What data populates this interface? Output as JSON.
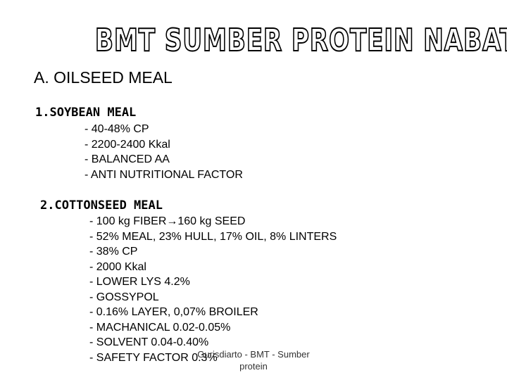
{
  "title": "BMT SUMBER PROTEIN NABATI",
  "section_heading": "A. OILSEED MEAL",
  "items": [
    {
      "heading": "1.SOYBEAN MEAL",
      "lines": [
        "- 40-48% CP",
        "- 2200-2400 Kkal",
        "- BALANCED AA",
        "- ANTI NUTRITIONAL FACTOR"
      ]
    },
    {
      "heading": "2.COTTONSEED MEAL",
      "first_line": {
        "before": "- 100 kg FIBER",
        "arrow": "→",
        "after": "160 kg SEED"
      },
      "lines": [
        "- 52% MEAL, 23% HULL, 17% OIL, 8% LINTERS",
        "- 38% CP",
        "- 2000 Kkal",
        "- LOWER LYS 4.2%",
        "- GOSSYPOL",
        "- 0.16% LAYER, 0,07% BROILER",
        "- MACHANICAL 0.02-0.05%",
        "- SOLVENT 0.04-0.40%",
        "- SAFETY FACTOR 0.3%"
      ]
    }
  ],
  "footer": {
    "line1": "Gurisdiarto - BMT - Sumber",
    "line2": "protein"
  }
}
